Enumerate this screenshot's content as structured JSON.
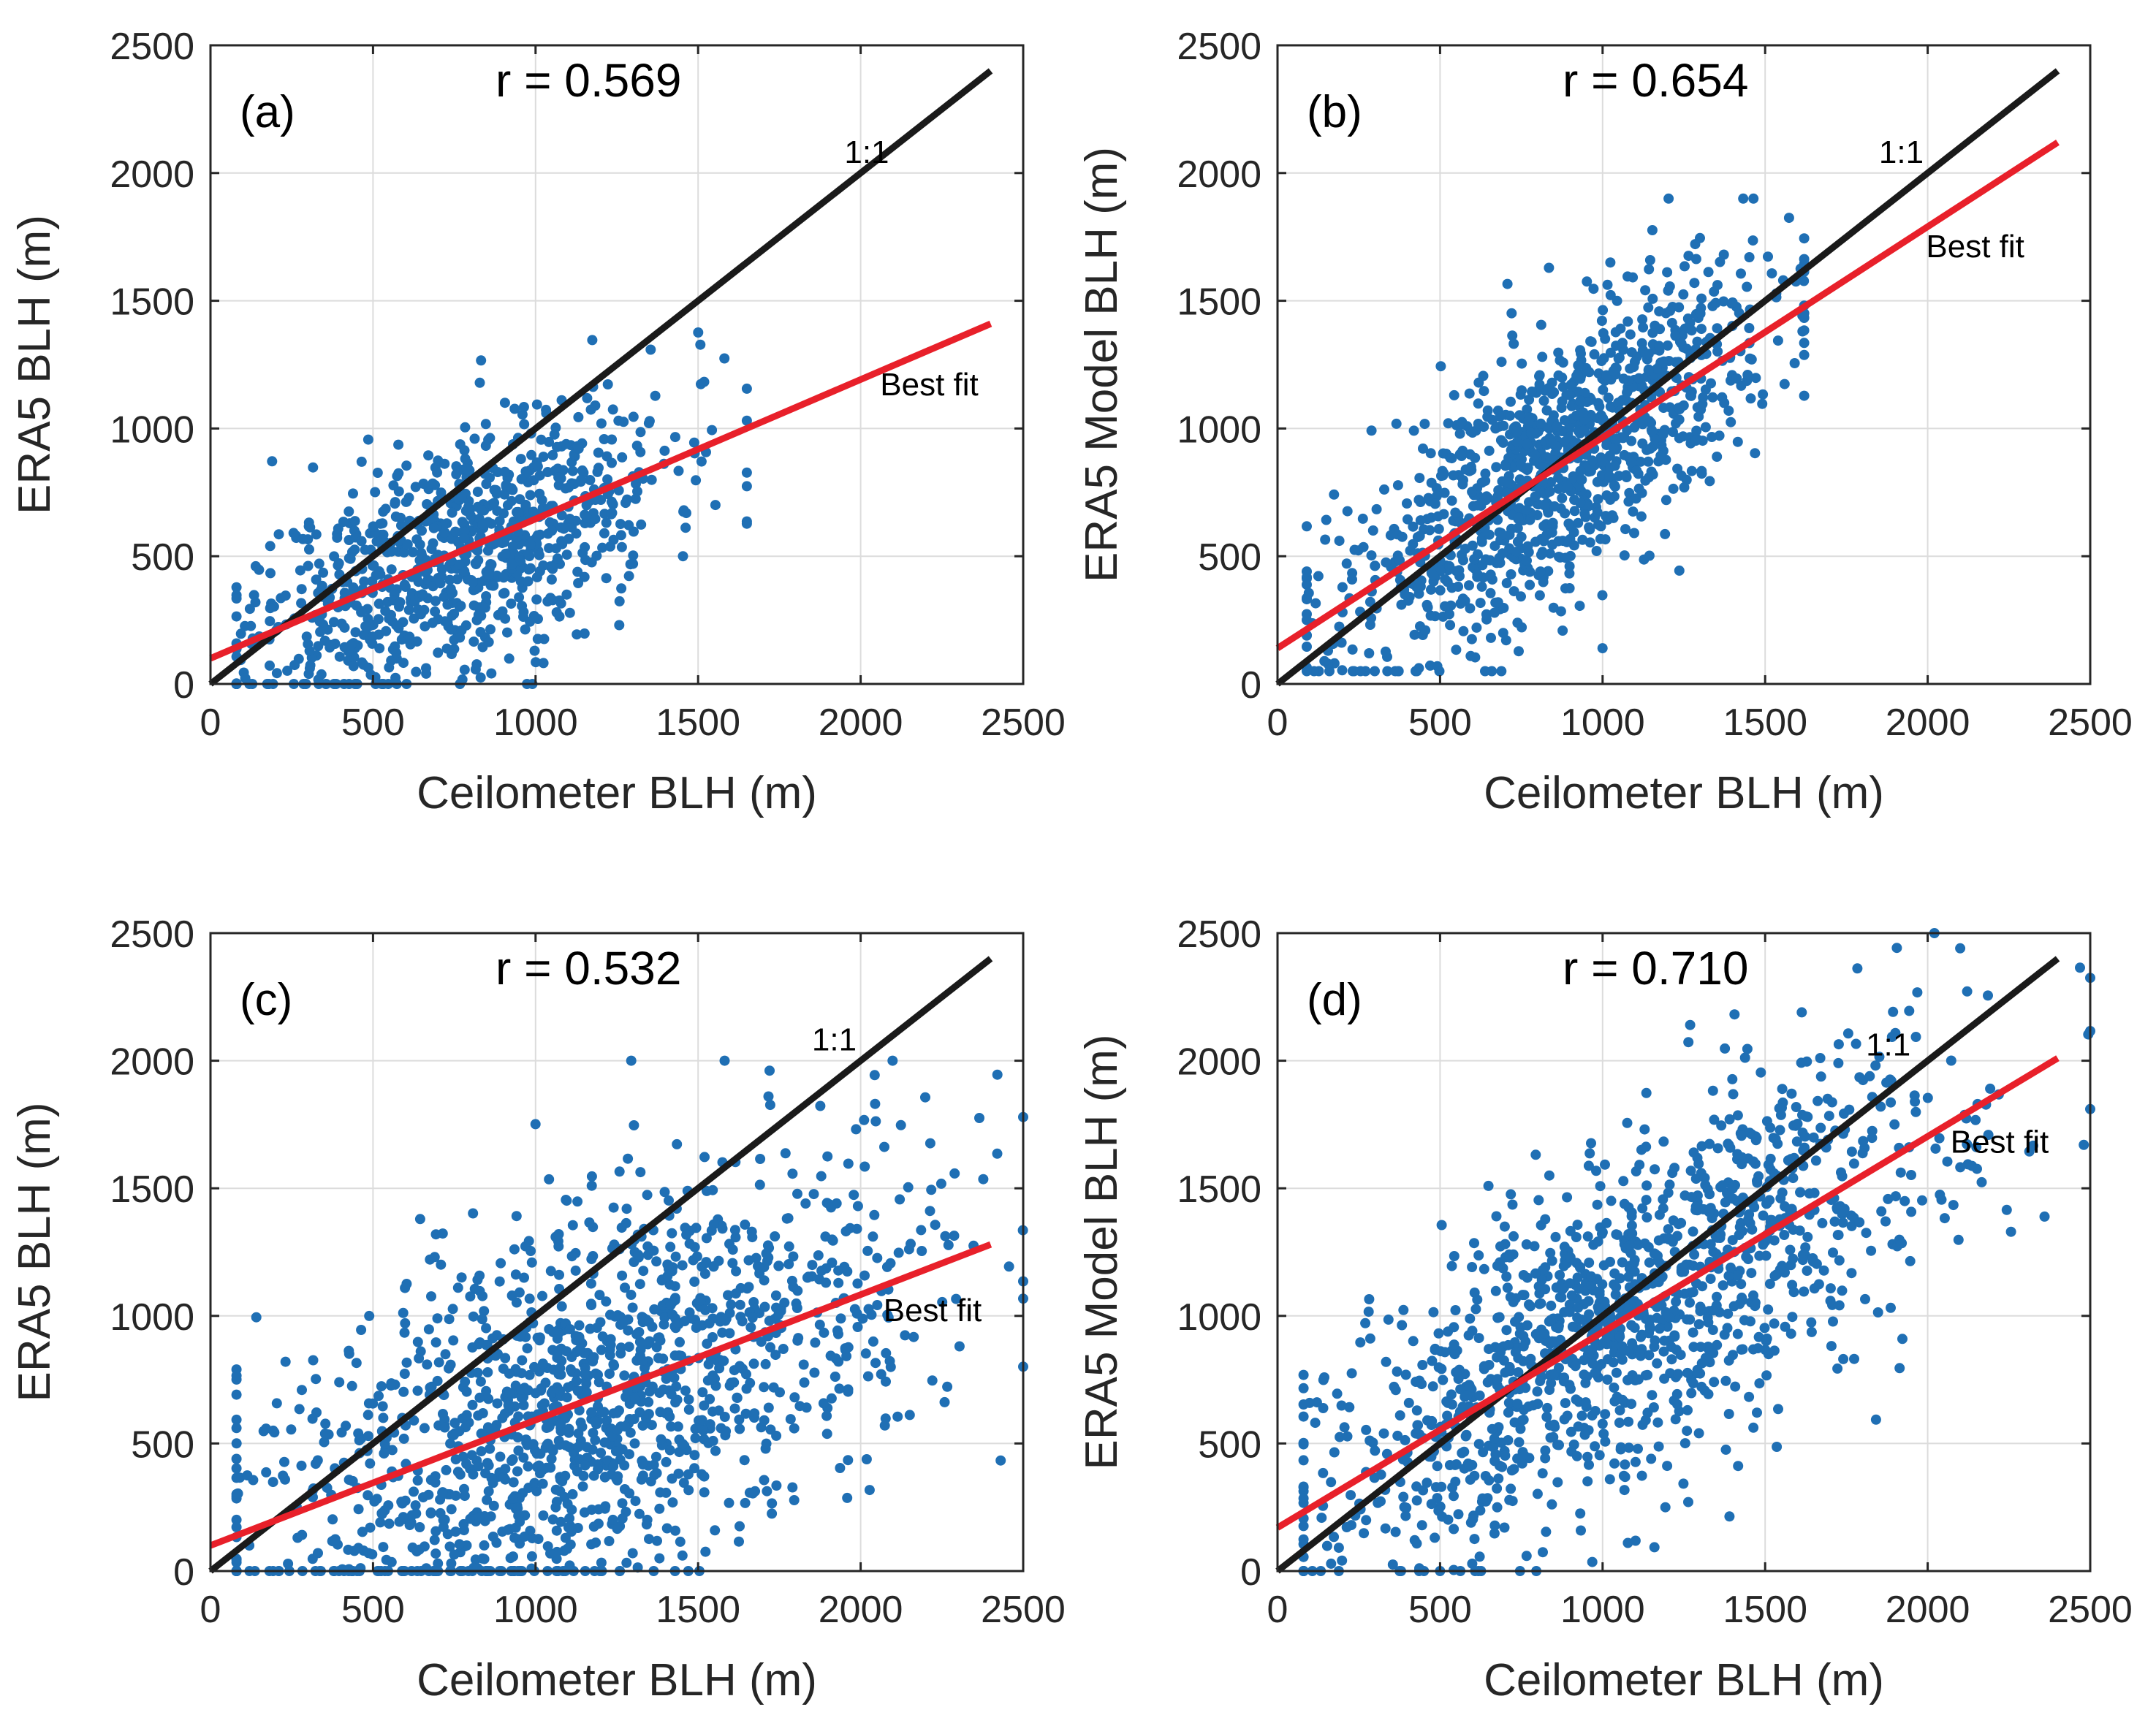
{
  "colors": {
    "points": "#1f6fb4",
    "identity_line": "#1a1a1a",
    "fit_line": "#e8202a",
    "grid": "#dcdcdc",
    "axes": "#262626"
  },
  "chart_data": [
    {
      "type": "scatter",
      "panel": "(a)",
      "r_label": "r = 0.569",
      "xlabel": "Ceilometer BLH (m)",
      "ylabel": "ERA5 BLH (m)",
      "xlim": [
        0,
        2500
      ],
      "ylim": [
        0,
        2500
      ],
      "xticks": [
        "0",
        "500",
        "1000",
        "1500",
        "2000",
        "2500"
      ],
      "yticks": [
        "0",
        "500",
        "1000",
        "1500",
        "2000",
        "2500"
      ],
      "grid": true,
      "identity_line": {
        "label": "1:1",
        "from": [
          0,
          0
        ],
        "to": [
          2400,
          2400
        ],
        "label_at": [
          1950,
          2040
        ]
      },
      "fit_line": {
        "label": "Best fit",
        "from": [
          0,
          100
        ],
        "to": [
          2400,
          1410
        ],
        "label_at": [
          2060,
          1130
        ]
      },
      "point_cloud": {
        "n": 900,
        "seed": 11,
        "x_mean": 760,
        "x_sd": 320,
        "x_min": 80,
        "x_max": 1650,
        "fit_intercept": 100,
        "fit_slope": 0.546,
        "y_noise": 230,
        "y_min": 0,
        "y_max": 1500
      }
    },
    {
      "type": "scatter",
      "panel": "(b)",
      "r_label": "r = 0.654",
      "xlabel": "Ceilometer BLH (m)",
      "ylabel": "ERA5 Model BLH (m)",
      "xlim": [
        0,
        2500
      ],
      "ylim": [
        0,
        2500
      ],
      "xticks": [
        "0",
        "500",
        "1000",
        "1500",
        "2000",
        "2500"
      ],
      "yticks": [
        "0",
        "500",
        "1000",
        "1500",
        "2000",
        "2500"
      ],
      "grid": true,
      "identity_line": {
        "label": "1:1",
        "from": [
          0,
          0
        ],
        "to": [
          2400,
          2400
        ],
        "label_at": [
          1850,
          2040
        ]
      },
      "fit_line": {
        "label": "Best fit",
        "from": [
          0,
          140
        ],
        "to": [
          2400,
          2120
        ],
        "label_at": [
          1995,
          1670
        ]
      },
      "point_cloud": {
        "n": 1100,
        "seed": 23,
        "x_mean": 850,
        "x_sd": 330,
        "x_min": 90,
        "x_max": 1620,
        "fit_intercept": 140,
        "fit_slope": 0.825,
        "y_noise": 260,
        "y_min": 50,
        "y_max": 1900
      }
    },
    {
      "type": "scatter",
      "panel": "(c)",
      "r_label": "r = 0.532",
      "xlabel": "Ceilometer BLH (m)",
      "ylabel": "ERA5 BLH (m)",
      "xlim": [
        0,
        2500
      ],
      "ylim": [
        0,
        2500
      ],
      "xticks": [
        "0",
        "500",
        "1000",
        "1500",
        "2000",
        "2500"
      ],
      "yticks": [
        "0",
        "500",
        "1000",
        "1500",
        "2000",
        "2500"
      ],
      "grid": true,
      "identity_line": {
        "label": "1:1",
        "from": [
          0,
          0
        ],
        "to": [
          2400,
          2400
        ],
        "label_at": [
          1850,
          2040
        ]
      },
      "fit_line": {
        "label": "Best fit",
        "from": [
          0,
          100
        ],
        "to": [
          2400,
          1280
        ],
        "label_at": [
          2070,
          980
        ]
      },
      "point_cloud": {
        "n": 1400,
        "seed": 37,
        "x_mean": 1150,
        "x_sd": 500,
        "x_min": 80,
        "x_max": 2500,
        "fit_intercept": 100,
        "fit_slope": 0.492,
        "y_noise": 380,
        "y_min": 0,
        "y_max": 2000
      }
    },
    {
      "type": "scatter",
      "panel": "(d)",
      "r_label": "r = 0.710",
      "xlabel": "Ceilometer BLH (m)",
      "ylabel": "ERA5 Model BLH (m)",
      "xlim": [
        0,
        2500
      ],
      "ylim": [
        0,
        2500
      ],
      "xticks": [
        "0",
        "500",
        "1000",
        "1500",
        "2000",
        "2500"
      ],
      "yticks": [
        "0",
        "500",
        "1000",
        "1500",
        "2000",
        "2500"
      ],
      "grid": true,
      "identity_line": {
        "label": "1:1",
        "from": [
          0,
          0
        ],
        "to": [
          2400,
          2400
        ],
        "label_at": [
          1810,
          2020
        ]
      },
      "fit_line": {
        "label": "Best fit",
        "from": [
          0,
          170
        ],
        "to": [
          2400,
          2010
        ],
        "label_at": [
          2070,
          1640
        ]
      },
      "point_cloud": {
        "n": 1300,
        "seed": 53,
        "x_mean": 1100,
        "x_sd": 500,
        "x_min": 80,
        "x_max": 2500,
        "fit_intercept": 170,
        "fit_slope": 0.767,
        "y_noise": 340,
        "y_min": 0,
        "y_max": 2500
      }
    }
  ]
}
